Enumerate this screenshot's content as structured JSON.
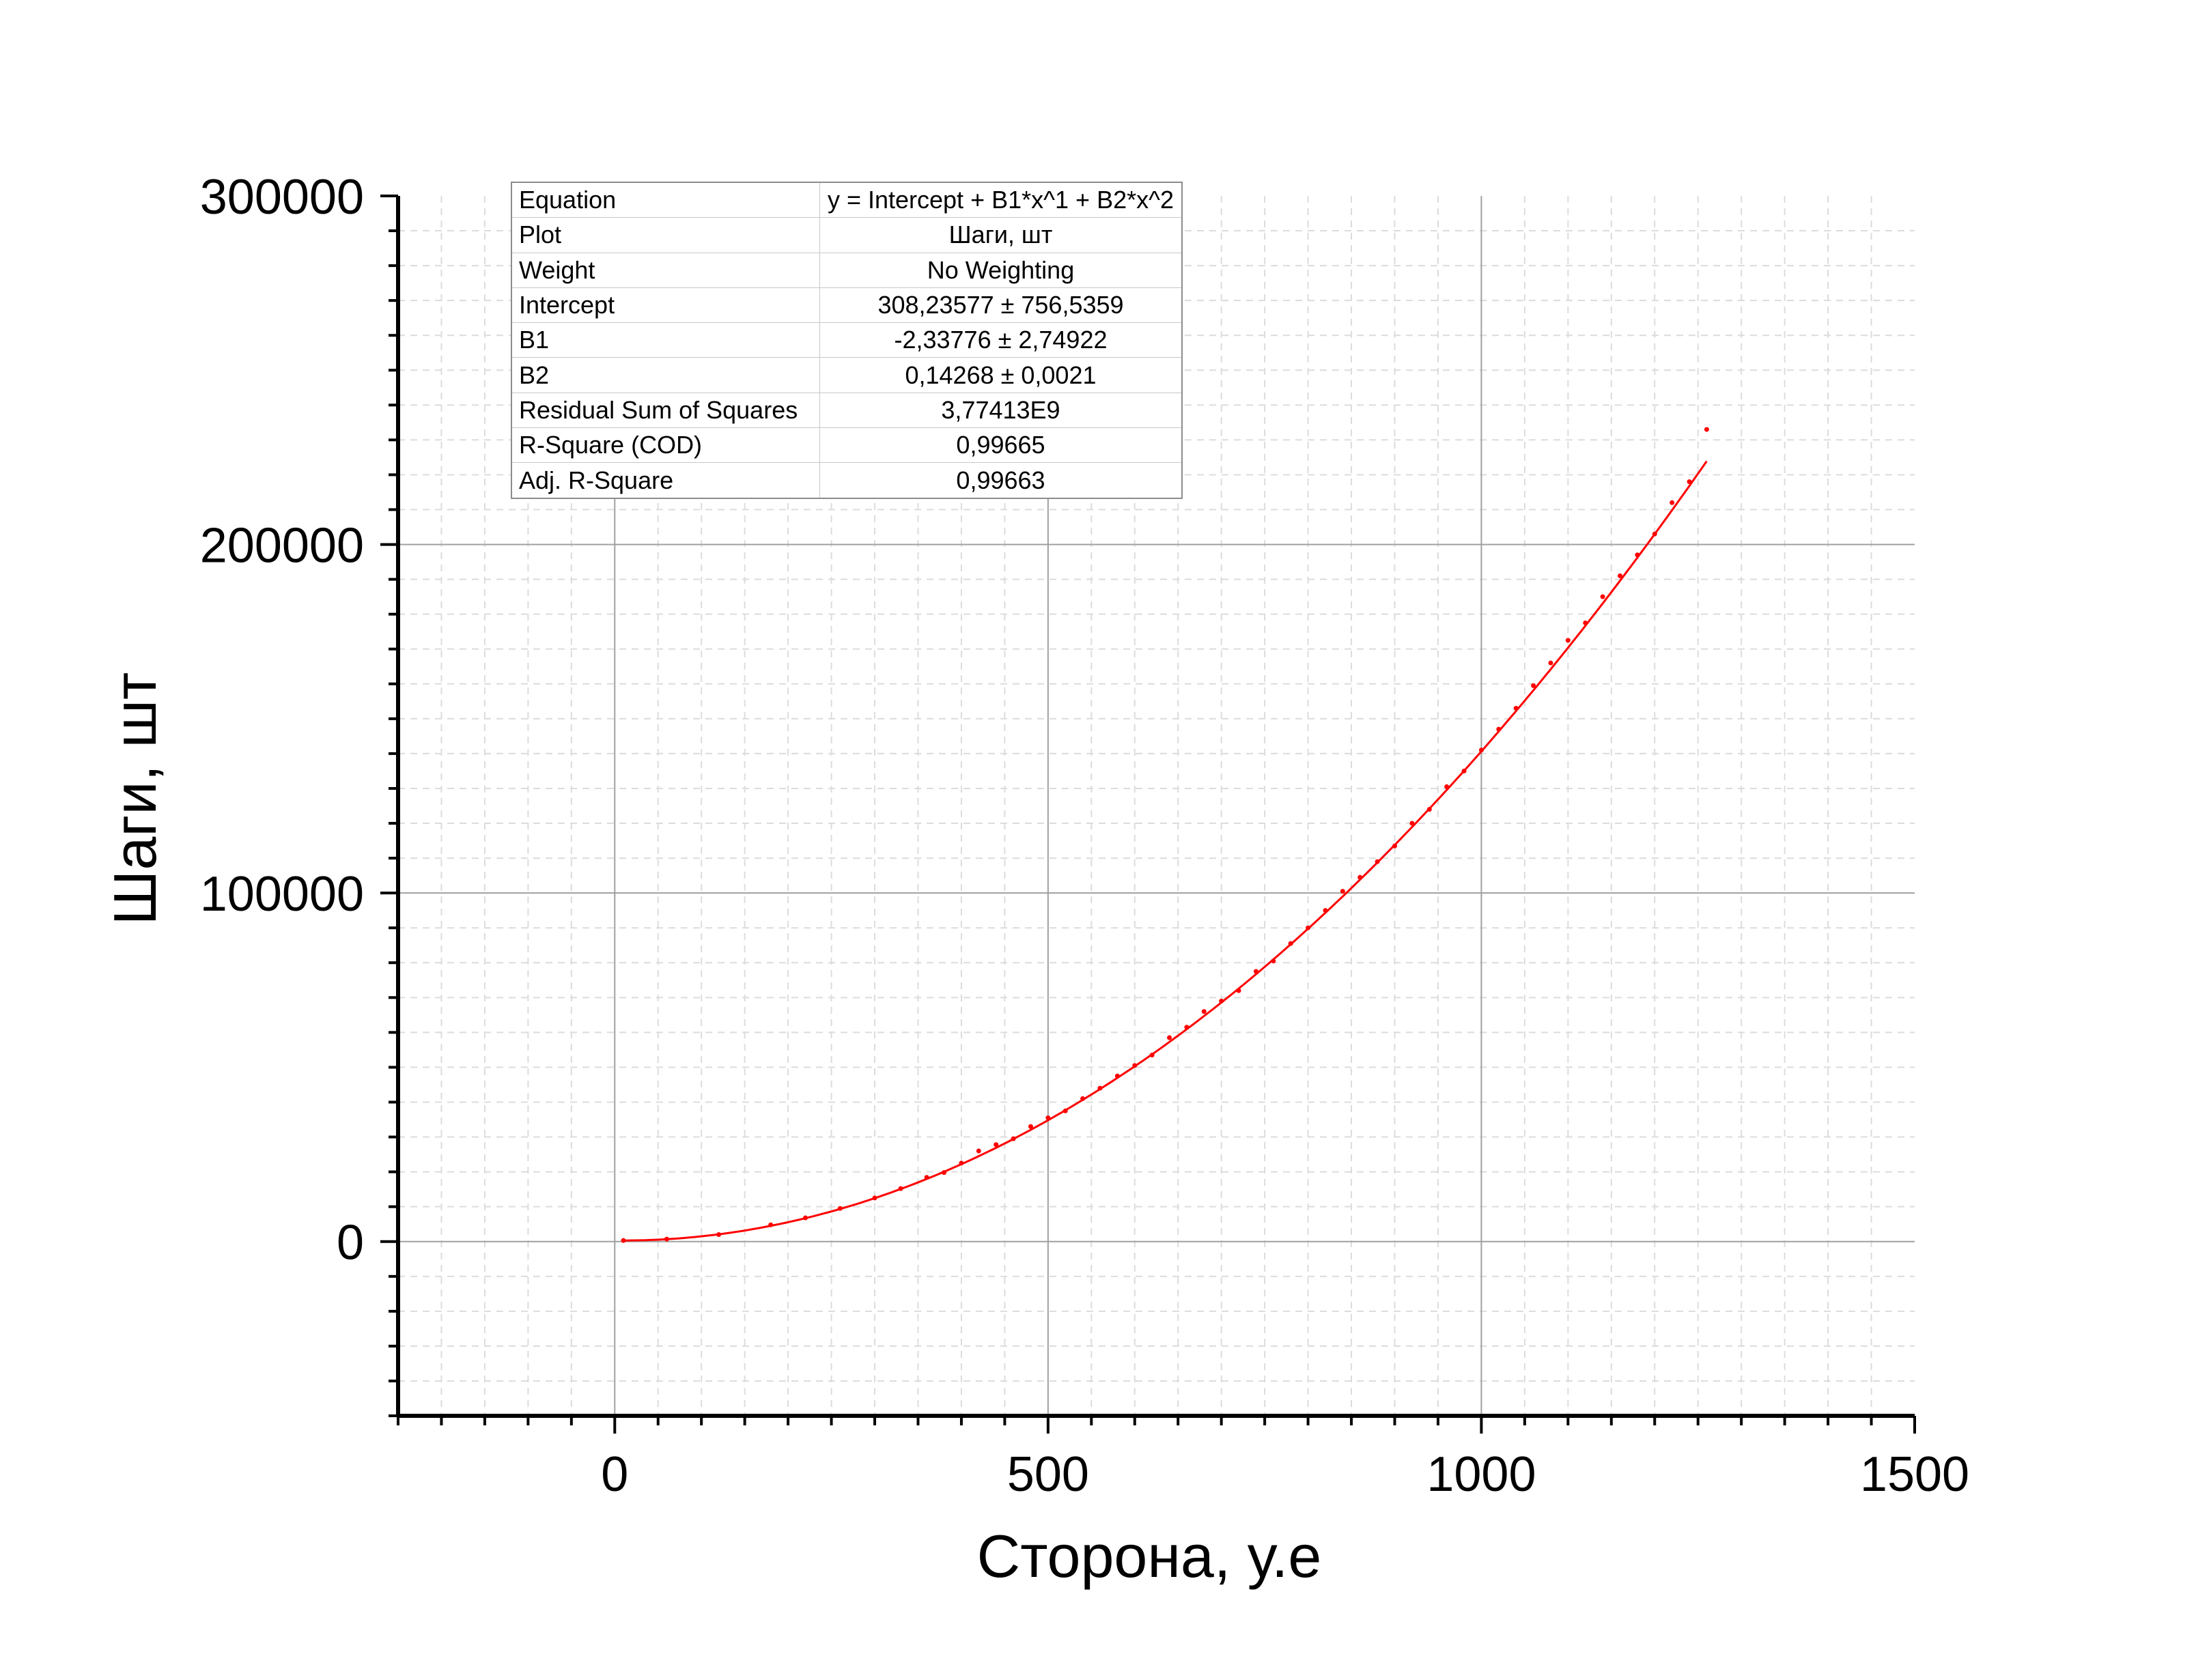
{
  "chart_data": {
    "type": "scatter",
    "title": "",
    "xlabel": "Сторона, у.е",
    "ylabel": "Шаги, шт",
    "xlim": [
      -250,
      1500
    ],
    "ylim": [
      -50000,
      300000
    ],
    "x_ticks": [
      0,
      500,
      1000,
      1500
    ],
    "y_ticks": [
      0,
      100000,
      200000,
      300000
    ],
    "x_tick_labels": [
      "0",
      "500",
      "1000",
      "1500"
    ],
    "y_tick_labels": [
      "0",
      "100000",
      "200000",
      "300000"
    ],
    "x_minor_step": 50,
    "y_minor_step": 10000,
    "grid": true,
    "colors": {
      "series": "#ff0000",
      "major_grid": "#a0a0a0",
      "minor_grid": "#dcdcdc",
      "axis": "#000000"
    },
    "fit": {
      "model": "quadratic",
      "intercept": 308.23577,
      "b1": -2.33776,
      "b2": 0.14268,
      "x_range": [
        10,
        1260
      ]
    },
    "series": [
      {
        "x": [
          10,
          60,
          120,
          180,
          220,
          260,
          300,
          330,
          360,
          380,
          400,
          420,
          440,
          460,
          480,
          500,
          520,
          540,
          560,
          580,
          600,
          620,
          640,
          660,
          680,
          700,
          720,
          740,
          760,
          780,
          800,
          820,
          840,
          860,
          880,
          900,
          920,
          940,
          960,
          980,
          1000,
          1020,
          1040,
          1060,
          1080,
          1100,
          1120,
          1140,
          1160,
          1180,
          1200,
          1220,
          1240,
          1260
        ],
        "y": [
          300,
          700,
          2000,
          4800,
          6800,
          9500,
          12500,
          15200,
          18400,
          19800,
          22500,
          26000,
          27800,
          29500,
          33000,
          35500,
          37500,
          41000,
          44000,
          47500,
          50500,
          53500,
          58500,
          61500,
          66000,
          69000,
          72000,
          77500,
          80500,
          85500,
          90000,
          95000,
          100500,
          104500,
          109000,
          113500,
          120000,
          124000,
          130500,
          135000,
          141000,
          147000,
          153000,
          159500,
          166000,
          172500,
          177500,
          185000,
          191000,
          197000,
          203000,
          212000,
          218000,
          233000
        ]
      }
    ]
  },
  "stats_table": {
    "rows": [
      {
        "key": "Equation",
        "value": "y = Intercept + B1*x^1 + B2*x^2"
      },
      {
        "key": "Plot",
        "value": "Шаги, шт"
      },
      {
        "key": "Weight",
        "value": "No Weighting"
      },
      {
        "key": "Intercept",
        "value": "308,23577 ± 756,5359"
      },
      {
        "key": "B1",
        "value": "-2,33776 ± 2,74922"
      },
      {
        "key": "B2",
        "value": "0,14268 ± 0,0021"
      },
      {
        "key": "Residual Sum of Squares",
        "value": "3,77413E9"
      },
      {
        "key": "R-Square (COD)",
        "value": "0,99665"
      },
      {
        "key": "Adj. R-Square",
        "value": "0,99663"
      }
    ]
  }
}
